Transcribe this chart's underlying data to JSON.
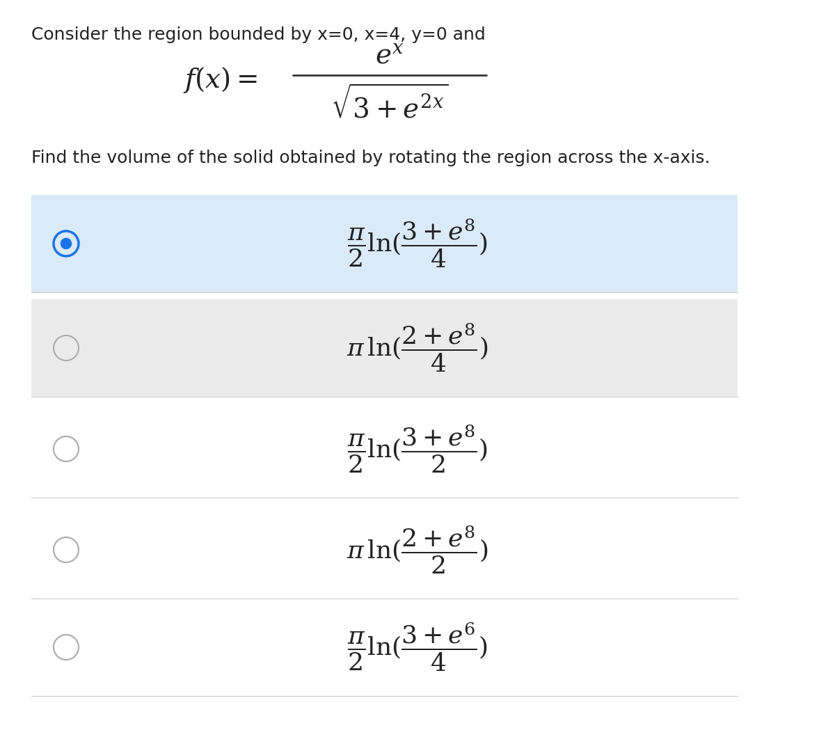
{
  "bg_color": "#ffffff",
  "header_text": "Consider the region bounded by x=0, x=4, y=0 and",
  "question_text": "Find the volume of the solid obtained by rotating the region across the x-axis.",
  "option_bg_selected": "#daeaf8",
  "option_bg_alt": "#ebebeb",
  "option_bg_normal": "#ffffff",
  "radio_color_selected": "#1a73e8",
  "radio_color_normal": "#aaaaaa",
  "text_color": "#222222",
  "font_size_header": 18,
  "font_size_question": 18,
  "font_size_option": 26,
  "options_selected": [
    true,
    false,
    false,
    false,
    false
  ]
}
